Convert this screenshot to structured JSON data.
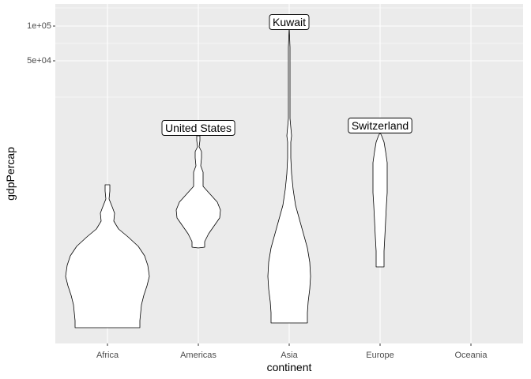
{
  "chart_data": {
    "type": "violin",
    "title": "",
    "xlabel": "continent",
    "ylabel": "gdpPercap",
    "categories": [
      "Africa",
      "Americas",
      "Asia",
      "Europe",
      "Oceania"
    ],
    "y_scale": "log10",
    "y_ticks": [
      {
        "value": 50000,
        "label": "5e+04"
      },
      {
        "value": 100000,
        "label": "1e+05"
      }
    ],
    "ylim": [
      35000,
      125000
    ],
    "grid": true,
    "legend": "none",
    "annotations": [
      {
        "category": "Americas",
        "label": "United States"
      },
      {
        "category": "Asia",
        "label": "Kuwait"
      },
      {
        "category": "Europe",
        "label": "Switzerland"
      }
    ],
    "colors": {
      "panel_background": "#ebebeb",
      "grid_line": "#ffffff",
      "violin_fill": "#ffffff",
      "violin_stroke": "#000000",
      "tick_text": "#4d4d4d"
    }
  }
}
